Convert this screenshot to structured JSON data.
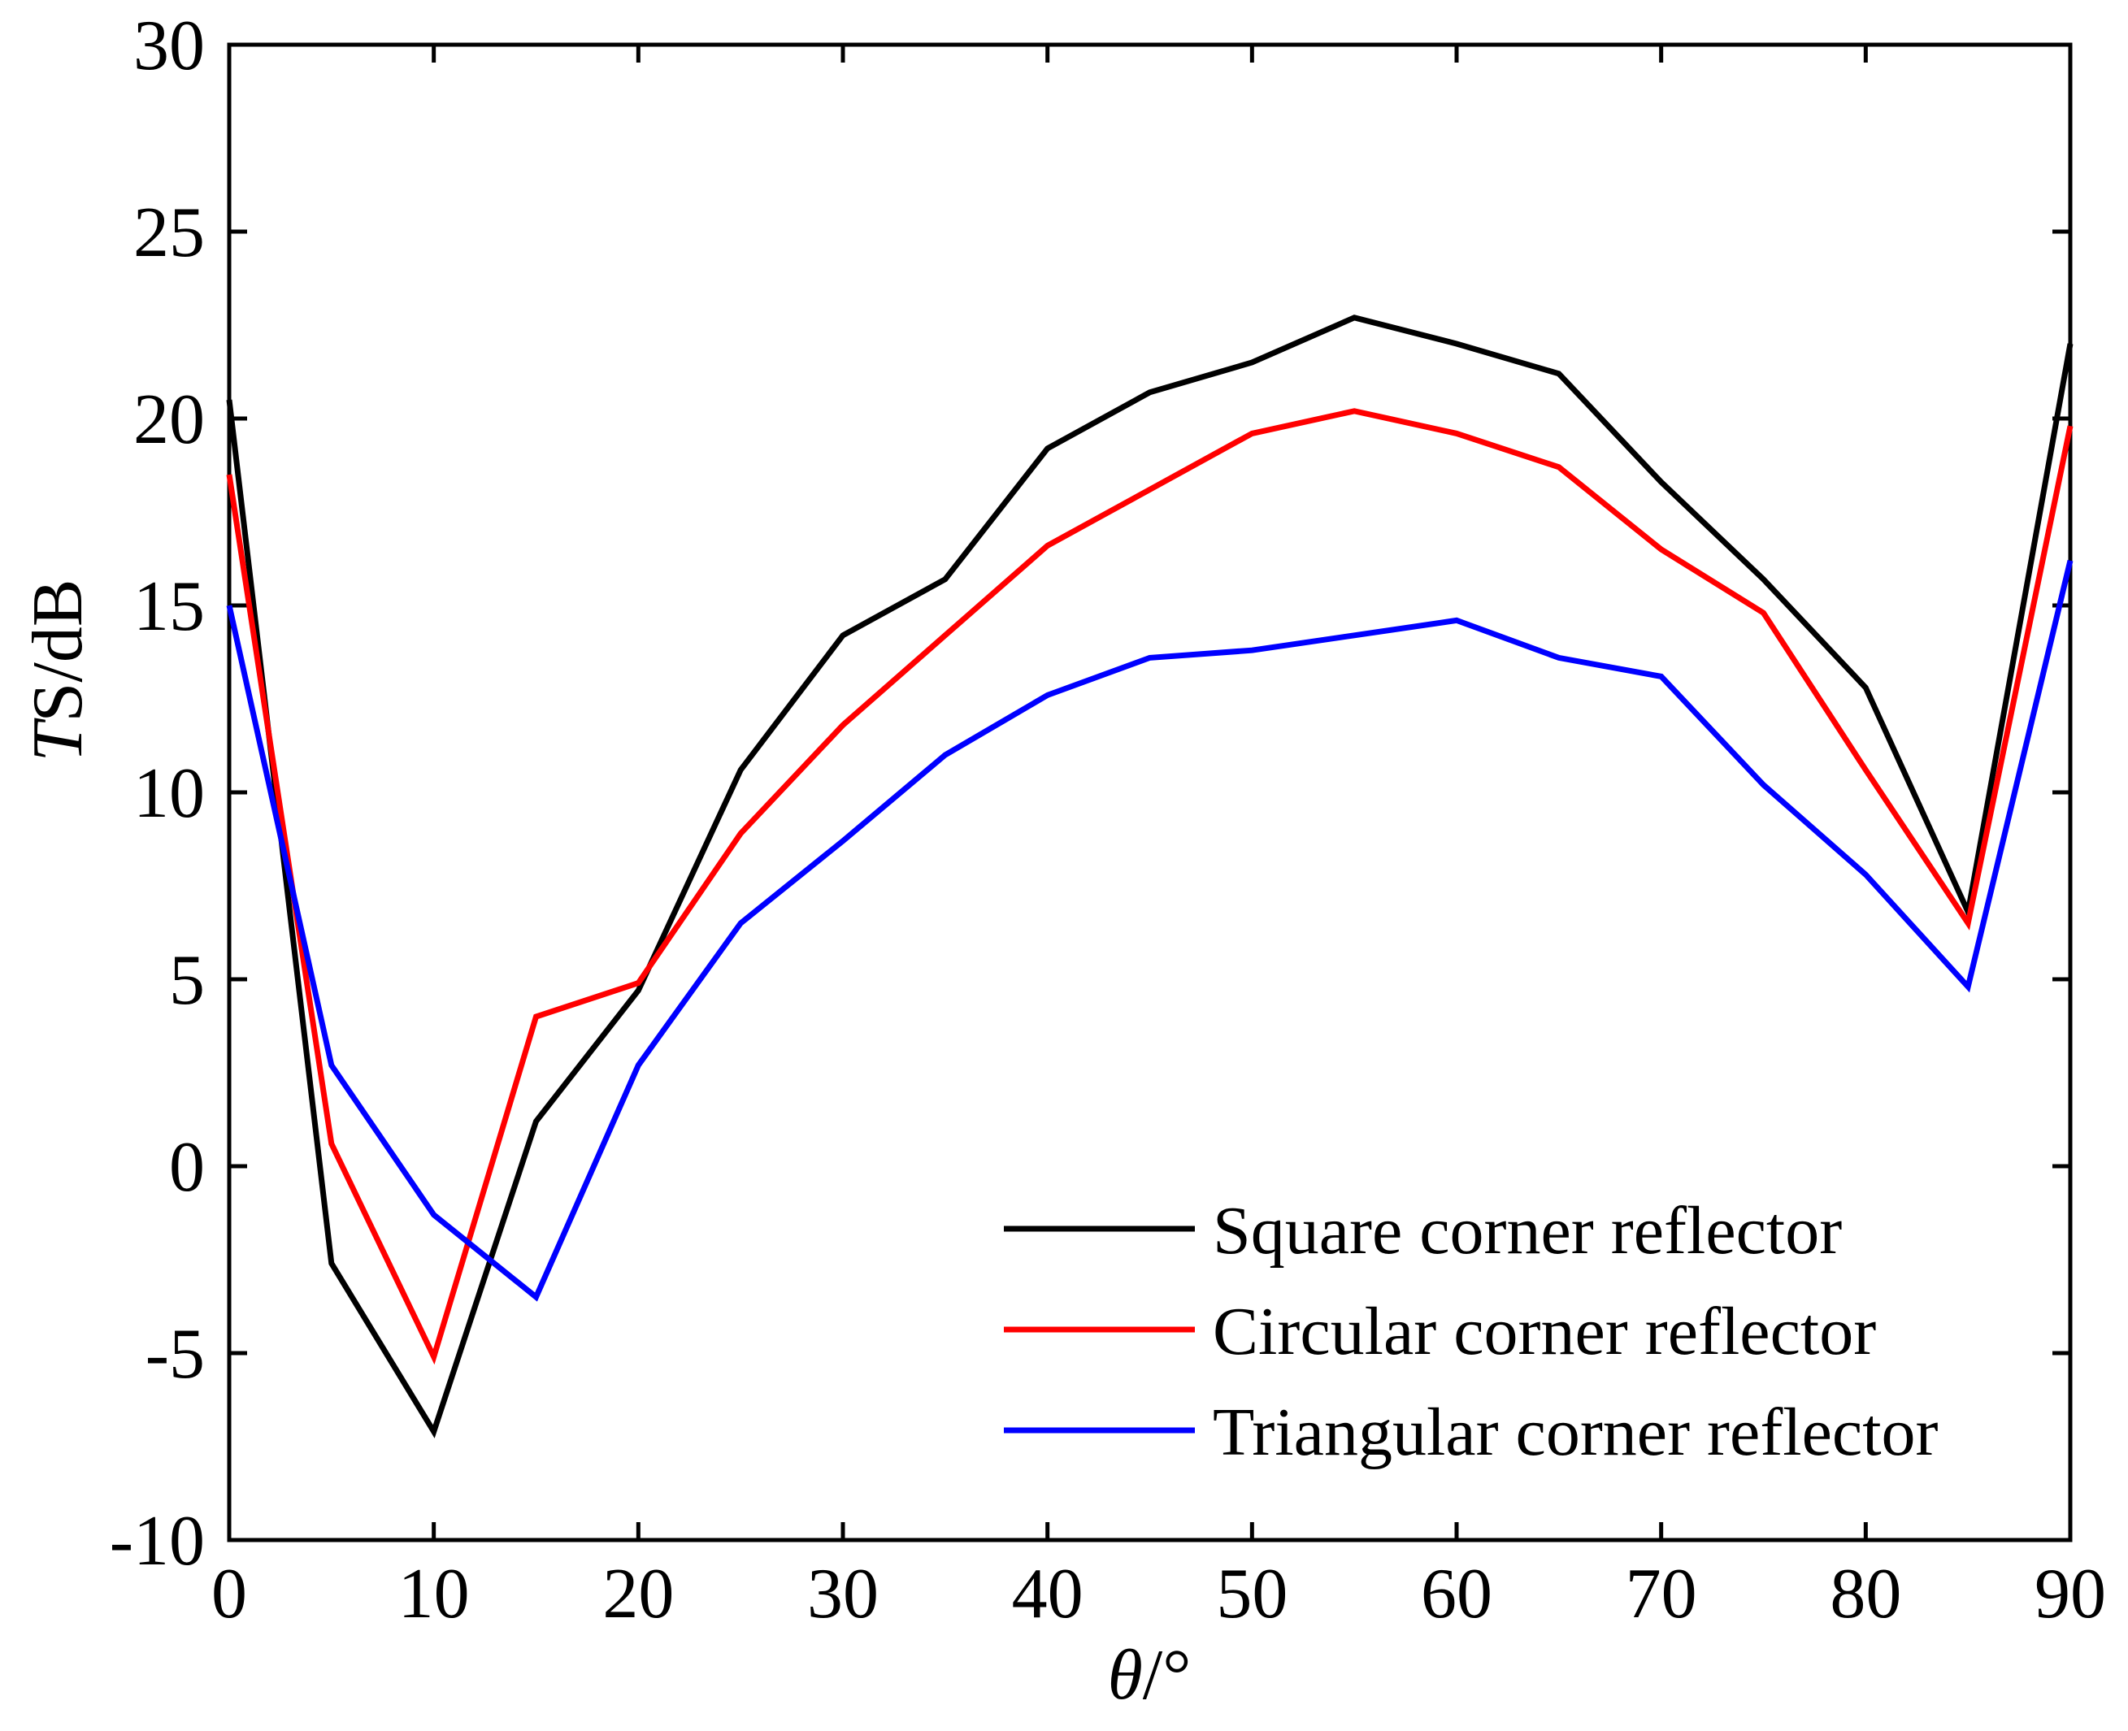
{
  "chart_data": {
    "type": "line",
    "title": "",
    "xlabel": "θ/°",
    "ylabel": "TS/dB",
    "xlabel_parts": {
      "var": "θ",
      "unit": "/°"
    },
    "ylabel_parts": {
      "var": "T",
      "unit": "S/dB"
    },
    "xlim": [
      0,
      90
    ],
    "ylim": [
      -10,
      30
    ],
    "x_ticks": [
      0,
      10,
      20,
      30,
      40,
      50,
      60,
      70,
      80,
      90
    ],
    "y_ticks": [
      -10,
      -5,
      0,
      5,
      10,
      15,
      20,
      25,
      30
    ],
    "grid": false,
    "legend_position": "bottom-right",
    "x": [
      0,
      5,
      10,
      15,
      20,
      25,
      30,
      35,
      40,
      45,
      50,
      55,
      60,
      65,
      70,
      75,
      80,
      85,
      90
    ],
    "series": [
      {
        "name": "Square corner reflector",
        "color": "#000000",
        "values": [
          20.5,
          -2.6,
          -7.1,
          1.2,
          4.7,
          10.6,
          14.2,
          15.7,
          19.2,
          20.7,
          21.5,
          22.7,
          22.0,
          21.2,
          18.3,
          15.7,
          12.8,
          6.8,
          22.0
        ]
      },
      {
        "name": "Circular corner reflector",
        "color": "#ff0000",
        "values": [
          18.5,
          0.6,
          -5.1,
          4.0,
          4.9,
          8.9,
          11.8,
          14.2,
          16.6,
          18.1,
          19.6,
          20.2,
          19.6,
          18.7,
          16.5,
          14.8,
          10.6,
          6.5,
          19.8
        ]
      },
      {
        "name": "Triangular corner reflector",
        "color": "#0000ff",
        "values": [
          15.0,
          2.7,
          -1.3,
          -3.5,
          2.7,
          6.5,
          8.7,
          11.0,
          12.6,
          13.6,
          13.8,
          14.2,
          14.6,
          13.6,
          13.1,
          10.2,
          7.8,
          4.8,
          16.2
        ]
      }
    ]
  }
}
